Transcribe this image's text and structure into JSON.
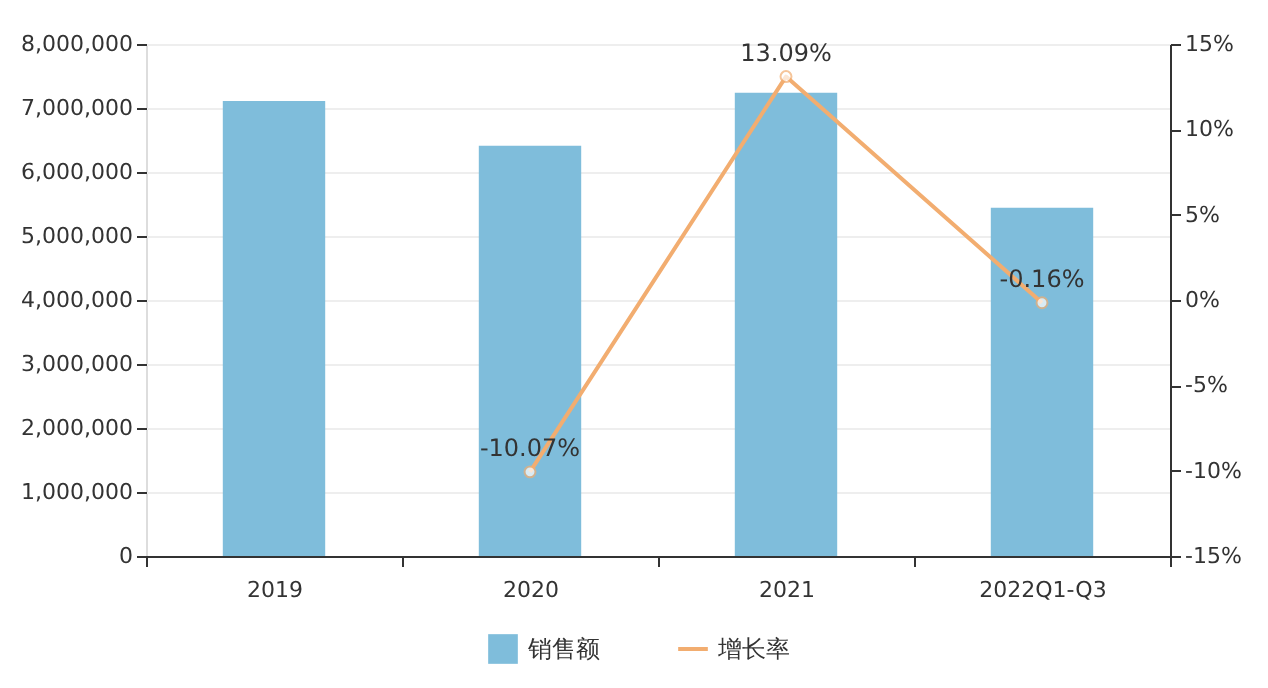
{
  "chart_data": {
    "type": "bar",
    "categories": [
      "2019",
      "2020",
      "2021",
      "2022Q1-Q3"
    ],
    "series": [
      {
        "name": "销售额",
        "color": "#7fbddb",
        "values": [
          7110000,
          6410000,
          7240000,
          5440000
        ]
      },
      {
        "name": "增长率",
        "type": "line",
        "axis": "y2",
        "color": "#f2ad70",
        "marker": "circle",
        "values": [
          null,
          -10.07,
          13.09,
          -0.16
        ],
        "value_labels": [
          null,
          "-10.07%",
          "13.09%",
          "-0.16%"
        ]
      }
    ],
    "ylim": [
      0,
      8000000
    ],
    "yticks": [
      0,
      {
        "value": 1000000,
        "label": "1,000,000"
      },
      {
        "value": 2000000,
        "label": "2,000,000"
      },
      {
        "value": 3000000,
        "label": "3,000,000"
      },
      {
        "value": 4000000,
        "label": "4,000,000"
      },
      {
        "value": 5000000,
        "label": "5,000,000"
      },
      {
        "value": 6000000,
        "label": "6,000,000"
      },
      {
        "value": 7000000,
        "label": "7,000,000"
      },
      {
        "value": 8000000,
        "label": "8,000,000"
      }
    ],
    "y2lim": [
      -15,
      15
    ],
    "y2ticks": [
      {
        "value": -15,
        "label": "-15%"
      },
      {
        "value": -10,
        "label": "-10%"
      },
      {
        "value": -5,
        "label": "-5%"
      },
      {
        "value": 0,
        "label": "0%"
      },
      {
        "value": 5,
        "label": "5%"
      },
      {
        "value": 10,
        "label": "10%"
      },
      {
        "value": 15,
        "label": "15%"
      }
    ],
    "grid": "y",
    "legend": "bottom"
  }
}
